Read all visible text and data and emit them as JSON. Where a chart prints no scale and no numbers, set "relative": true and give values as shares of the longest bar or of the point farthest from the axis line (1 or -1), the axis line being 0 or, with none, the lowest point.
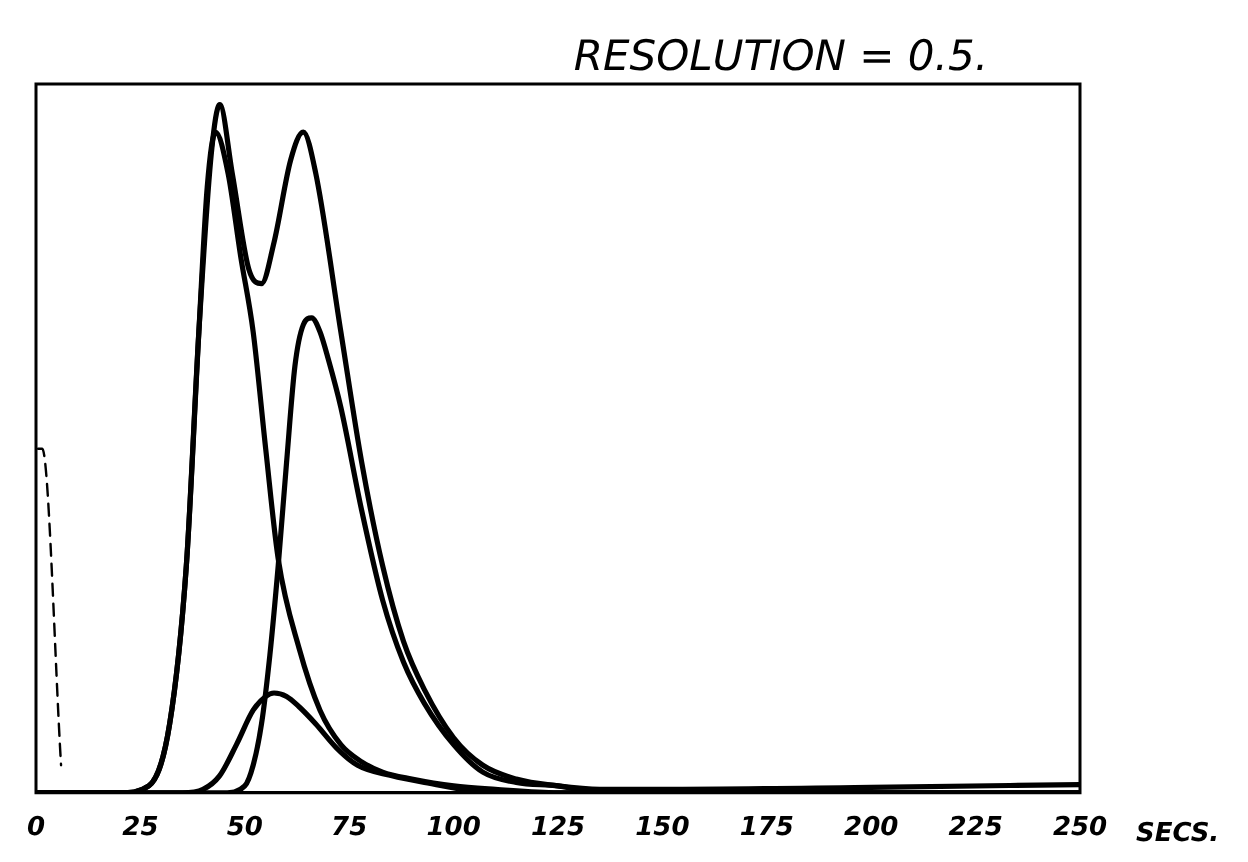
{
  "chart_data": {
    "type": "line",
    "title": "RESOLUTION = 0.5.",
    "xlabel": "SECS.",
    "relative": true,
    "xlim": [
      0,
      250
    ],
    "xticks": [
      0,
      25,
      50,
      75,
      100,
      125,
      150,
      175,
      200,
      225,
      250
    ],
    "grid": false,
    "legend": false,
    "marker": "none",
    "line_style": "solid",
    "series": [
      {
        "color": "#000000",
        "x": [
          0,
          20,
          27,
          32,
          36,
          39,
          42,
          44,
          47,
          51,
          54,
          57,
          61,
          64,
          67,
          73,
          78,
          83,
          88,
          93,
          100,
          107,
          115,
          125,
          135,
          150,
          200,
          250
        ],
        "values": [
          0,
          0,
          0.01,
          0.1,
          0.33,
          0.67,
          0.93,
          1,
          0.9,
          0.76,
          0.74,
          0.8,
          0.92,
          0.96,
          0.9,
          0.67,
          0.48,
          0.33,
          0.22,
          0.15,
          0.08,
          0.04,
          0.02,
          0.01,
          0.005,
          0.005,
          0.008,
          0.012
        ]
      },
      {
        "color": "#000000",
        "x": [
          0,
          20,
          27,
          32,
          36,
          39,
          41,
          43,
          46,
          49,
          52,
          55,
          58,
          63,
          68,
          73,
          78,
          83,
          90,
          100,
          110,
          125,
          250
        ],
        "values": [
          0,
          0,
          0.01,
          0.1,
          0.33,
          0.67,
          0.88,
          0.96,
          0.9,
          0.78,
          0.67,
          0.5,
          0.34,
          0.21,
          0.12,
          0.07,
          0.045,
          0.03,
          0.02,
          0.01,
          0.005,
          0,
          0
        ]
      },
      {
        "color": "#000000",
        "x": [
          0,
          45,
          50,
          52,
          54,
          56,
          58,
          60,
          62,
          64,
          66,
          68,
          70,
          73,
          78,
          83,
          88,
          93,
          100,
          107,
          115,
          125,
          135,
          250
        ],
        "values": [
          0,
          0,
          0.01,
          0.04,
          0.1,
          0.2,
          0.33,
          0.48,
          0.62,
          0.68,
          0.69,
          0.67,
          0.63,
          0.56,
          0.41,
          0.28,
          0.19,
          0.13,
          0.07,
          0.03,
          0.015,
          0.01,
          0,
          0
        ]
      },
      {
        "color": "#000000",
        "x": [
          0,
          35,
          40,
          44,
          48,
          52,
          55,
          57,
          60,
          63,
          67,
          72,
          77,
          85,
          93,
          110,
          250
        ],
        "values": [
          0,
          0,
          0.005,
          0.025,
          0.07,
          0.12,
          0.14,
          0.145,
          0.14,
          0.125,
          0.1,
          0.065,
          0.04,
          0.025,
          0.015,
          0,
          0
        ]
      },
      {
        "color": "#000000",
        "line_style": "dashed",
        "x": [
          0.5,
          1.5,
          6
        ],
        "values": [
          0.5,
          0.5,
          0.04
        ]
      }
    ]
  }
}
